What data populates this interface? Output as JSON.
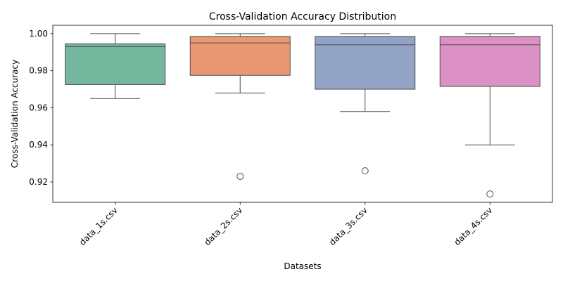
{
  "chart_data": {
    "type": "box",
    "title": "Cross-Validation Accuracy Distribution",
    "xlabel": "Datasets",
    "ylabel": "Cross-Validation Accuracy",
    "ylim": [
      0.909,
      1.0045
    ],
    "yticks": [
      0.92,
      0.94,
      0.96,
      0.98,
      1.0
    ],
    "ytick_labels": [
      "0.92",
      "0.94",
      "0.96",
      "0.98",
      "1.00"
    ],
    "grid": false,
    "legend": "none",
    "categories": [
      "data_1s.csv",
      "data_2s.csv",
      "data_3s.csv",
      "data_4s.csv"
    ],
    "boxes": [
      {
        "category": "data_1s.csv",
        "color": "#75b69f",
        "whisker_low": 0.965,
        "q1": 0.9725,
        "median": 0.993,
        "q3": 0.9945,
        "whisker_high": 1.0,
        "outliers": []
      },
      {
        "category": "data_2s.csv",
        "color": "#ea9873",
        "whisker_low": 0.968,
        "q1": 0.9775,
        "median": 0.995,
        "q3": 0.9985,
        "whisker_high": 1.0,
        "outliers": [
          0.923
        ]
      },
      {
        "category": "data_3s.csv",
        "color": "#93a3c6",
        "whisker_low": 0.958,
        "q1": 0.97,
        "median": 0.994,
        "q3": 0.9985,
        "whisker_high": 1.0,
        "outliers": [
          0.926
        ]
      },
      {
        "category": "data_4s.csv",
        "color": "#db91c3",
        "whisker_low": 0.94,
        "q1": 0.9715,
        "median": 0.994,
        "q3": 0.9985,
        "whisker_high": 1.0,
        "outliers": [
          0.9135
        ]
      }
    ]
  }
}
